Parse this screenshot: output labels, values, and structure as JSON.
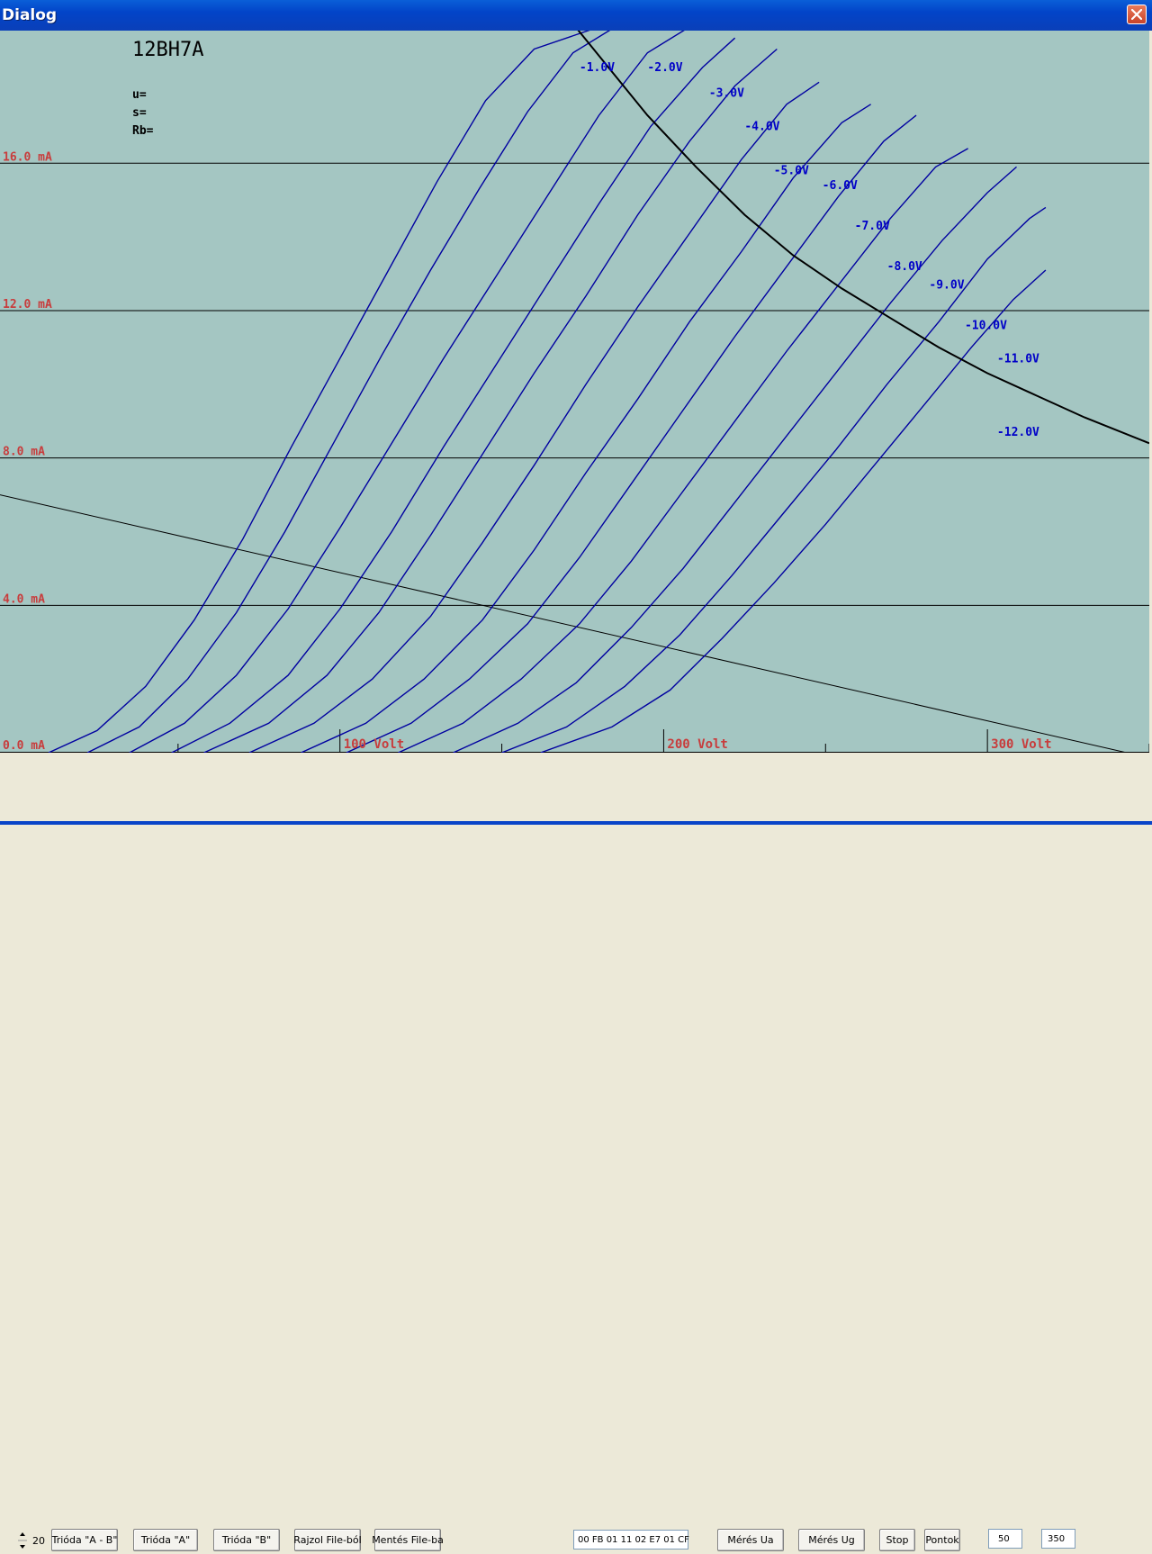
{
  "window": {
    "title": "Dialog"
  },
  "chart_data": {
    "type": "line",
    "title": "12BH7A",
    "params": {
      "u": "u=",
      "s": "s=",
      "rb": "Rb="
    },
    "xlim": [
      -5,
      350
    ],
    "ylim": [
      0,
      19.6
    ],
    "y_ticks": [
      {
        "value": 0,
        "label": "0.0 mA"
      },
      {
        "value": 4,
        "label": "4.0 mA"
      },
      {
        "value": 8,
        "label": "8.0 mA"
      },
      {
        "value": 12,
        "label": "12.0 mA"
      },
      {
        "value": 16,
        "label": "16.0 mA"
      }
    ],
    "x_ticks": [
      {
        "value": 100,
        "label": "100 Volt"
      },
      {
        "value": 200,
        "label": "200 Volt"
      },
      {
        "value": 300,
        "label": "300 Volt"
      }
    ],
    "x_minor_ticks": [
      50,
      150,
      250,
      350
    ],
    "series": [
      {
        "name": "-1.0V",
        "color": "#0000a0",
        "label_at": [
          174,
          18.5
        ],
        "points": [
          [
            10,
            0
          ],
          [
            25,
            0.6
          ],
          [
            40,
            1.8
          ],
          [
            55,
            3.6
          ],
          [
            70,
            5.8
          ],
          [
            85,
            8.3
          ],
          [
            100,
            10.7
          ],
          [
            115,
            13.1
          ],
          [
            130,
            15.5
          ],
          [
            145,
            17.7
          ],
          [
            160,
            19.1
          ],
          [
            180,
            19.7
          ]
        ]
      },
      {
        "name": "-2.0V",
        "color": "#0000a0",
        "label_at": [
          195,
          18.5
        ],
        "points": [
          [
            22,
            0
          ],
          [
            38,
            0.7
          ],
          [
            53,
            2.0
          ],
          [
            68,
            3.8
          ],
          [
            83,
            6.0
          ],
          [
            98,
            8.4
          ],
          [
            113,
            10.8
          ],
          [
            128,
            13.1
          ],
          [
            143,
            15.3
          ],
          [
            158,
            17.4
          ],
          [
            172,
            19.0
          ],
          [
            185,
            19.7
          ]
        ]
      },
      {
        "name": "-3.0V",
        "color": "#0000a0",
        "label_at": [
          214,
          17.8
        ],
        "points": [
          [
            35,
            0
          ],
          [
            52,
            0.8
          ],
          [
            68,
            2.1
          ],
          [
            84,
            3.9
          ],
          [
            100,
            6.1
          ],
          [
            116,
            8.4
          ],
          [
            132,
            10.7
          ],
          [
            148,
            12.9
          ],
          [
            164,
            15.1
          ],
          [
            180,
            17.3
          ],
          [
            195,
            19.0
          ],
          [
            208,
            19.7
          ]
        ]
      },
      {
        "name": "-4.0V",
        "color": "#0000a0",
        "label_at": [
          225,
          16.9
        ],
        "points": [
          [
            48,
            0
          ],
          [
            66,
            0.8
          ],
          [
            84,
            2.1
          ],
          [
            100,
            3.9
          ],
          [
            116,
            6.0
          ],
          [
            132,
            8.3
          ],
          [
            148,
            10.5
          ],
          [
            164,
            12.7
          ],
          [
            180,
            14.9
          ],
          [
            196,
            17.0
          ],
          [
            212,
            18.6
          ],
          [
            222,
            19.4
          ]
        ]
      },
      {
        "name": "-5.0V",
        "color": "#0000a0",
        "label_at": [
          234,
          15.7
        ],
        "points": [
          [
            58,
            0
          ],
          [
            78,
            0.8
          ],
          [
            96,
            2.1
          ],
          [
            112,
            3.8
          ],
          [
            128,
            5.9
          ],
          [
            144,
            8.1
          ],
          [
            160,
            10.3
          ],
          [
            176,
            12.4
          ],
          [
            192,
            14.6
          ],
          [
            208,
            16.6
          ],
          [
            222,
            18.1
          ],
          [
            235,
            19.1
          ]
        ]
      },
      {
        "name": "-6.0V",
        "color": "#0000a0",
        "label_at": [
          249,
          15.3
        ],
        "points": [
          [
            72,
            0
          ],
          [
            92,
            0.8
          ],
          [
            110,
            2.0
          ],
          [
            128,
            3.7
          ],
          [
            144,
            5.7
          ],
          [
            160,
            7.8
          ],
          [
            176,
            10.0
          ],
          [
            192,
            12.1
          ],
          [
            208,
            14.1
          ],
          [
            224,
            16.1
          ],
          [
            238,
            17.6
          ],
          [
            248,
            18.2
          ]
        ]
      },
      {
        "name": "-7.0V",
        "color": "#0000a0",
        "label_at": [
          259,
          14.2
        ],
        "points": [
          [
            88,
            0
          ],
          [
            108,
            0.8
          ],
          [
            126,
            2.0
          ],
          [
            144,
            3.6
          ],
          [
            160,
            5.5
          ],
          [
            176,
            7.6
          ],
          [
            192,
            9.6
          ],
          [
            208,
            11.7
          ],
          [
            224,
            13.6
          ],
          [
            240,
            15.6
          ],
          [
            255,
            17.1
          ],
          [
            264,
            17.6
          ]
        ]
      },
      {
        "name": "-8.0V",
        "color": "#0000a0",
        "label_at": [
          269,
          13.1
        ],
        "points": [
          [
            102,
            0
          ],
          [
            122,
            0.8
          ],
          [
            140,
            2.0
          ],
          [
            158,
            3.5
          ],
          [
            174,
            5.3
          ],
          [
            190,
            7.3
          ],
          [
            206,
            9.3
          ],
          [
            222,
            11.3
          ],
          [
            238,
            13.2
          ],
          [
            254,
            15.1
          ],
          [
            268,
            16.6
          ],
          [
            278,
            17.3
          ]
        ]
      },
      {
        "name": "-9.0V",
        "color": "#0000a0",
        "label_at": [
          282,
          12.6
        ],
        "points": [
          [
            118,
            0
          ],
          [
            138,
            0.8
          ],
          [
            156,
            2.0
          ],
          [
            174,
            3.5
          ],
          [
            190,
            5.2
          ],
          [
            206,
            7.1
          ],
          [
            222,
            9.0
          ],
          [
            238,
            10.9
          ],
          [
            254,
            12.7
          ],
          [
            270,
            14.5
          ],
          [
            284,
            15.9
          ],
          [
            294,
            16.4
          ]
        ]
      },
      {
        "name": "-10.0V",
        "color": "#0000a0",
        "label_at": [
          293,
          11.5
        ],
        "points": [
          [
            135,
            0
          ],
          [
            155,
            0.8
          ],
          [
            173,
            1.9
          ],
          [
            190,
            3.4
          ],
          [
            206,
            5.0
          ],
          [
            222,
            6.8
          ],
          [
            238,
            8.6
          ],
          [
            254,
            10.4
          ],
          [
            270,
            12.2
          ],
          [
            286,
            13.9
          ],
          [
            300,
            15.2
          ],
          [
            309,
            15.9
          ]
        ]
      },
      {
        "name": "-11.0V",
        "color": "#0000a0",
        "label_at": [
          303,
          10.6
        ],
        "points": [
          [
            150,
            0
          ],
          [
            170,
            0.7
          ],
          [
            188,
            1.8
          ],
          [
            205,
            3.2
          ],
          [
            221,
            4.8
          ],
          [
            237,
            6.5
          ],
          [
            253,
            8.2
          ],
          [
            269,
            10.0
          ],
          [
            285,
            11.7
          ],
          [
            300,
            13.4
          ],
          [
            313,
            14.5
          ],
          [
            318,
            14.8
          ]
        ]
      },
      {
        "name": "-12.0V",
        "color": "#0000a0",
        "label_at": [
          303,
          8.6
        ],
        "points": [
          [
            162,
            0
          ],
          [
            184,
            0.7
          ],
          [
            202,
            1.7
          ],
          [
            218,
            3.1
          ],
          [
            234,
            4.6
          ],
          [
            250,
            6.2
          ],
          [
            266,
            7.9
          ],
          [
            281,
            9.5
          ],
          [
            295,
            11.0
          ],
          [
            308,
            12.3
          ],
          [
            318,
            13.1
          ]
        ]
      }
    ],
    "max_dissipation_curve": {
      "color": "#000000",
      "points": [
        [
          170,
          20
        ],
        [
          182,
          18.7
        ],
        [
          195,
          17.3
        ],
        [
          210,
          15.9
        ],
        [
          225,
          14.6
        ],
        [
          240,
          13.5
        ],
        [
          255,
          12.6
        ],
        [
          270,
          11.8
        ],
        [
          285,
          11.0
        ],
        [
          300,
          10.3
        ],
        [
          315,
          9.7
        ],
        [
          330,
          9.1
        ],
        [
          350,
          8.4
        ]
      ]
    },
    "load_line": {
      "color": "#000000",
      "points": [
        [
          -5,
          7.0
        ],
        [
          343,
          0
        ]
      ]
    }
  },
  "toolbar": {
    "spin_value": "20",
    "buttons": {
      "trioda_ab": "Trióda \"A - B\"",
      "trioda_a": "Trióda  \"A\"",
      "trioda_b": "Trióda  \"B\"",
      "rajzol": "Rajzol File-ból",
      "mentes": "Mentés File-ba",
      "meres_ua": "Mérés Ua",
      "meres_ug": "Mérés Ug",
      "stop": "Stop",
      "pontok": "Pontok"
    },
    "hex_field": "00 FB 01 11 02 E7 01 CF",
    "field_a": "50",
    "field_b": "350"
  },
  "colors": {
    "plot_bg": "#a4c6c2",
    "axis_label": "#c83c3c",
    "curve": "#0000a0",
    "curve_label": "#0000c8"
  }
}
